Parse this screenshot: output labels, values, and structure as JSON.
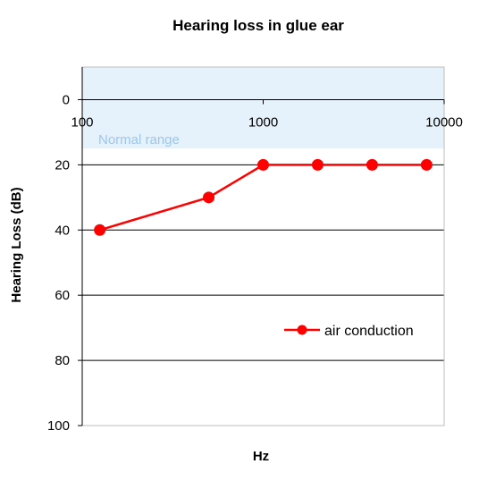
{
  "chart_data": {
    "type": "line",
    "title": "Hearing loss in glue ear",
    "xlabel": "Hz",
    "ylabel": "Hearing Loss (dB)",
    "x_scale": "log",
    "xlim": [
      100,
      10000
    ],
    "ylim": [
      -10,
      100
    ],
    "y_inverted": true,
    "x_ticks": [
      100,
      1000,
      10000
    ],
    "y_ticks": [
      0,
      20,
      40,
      60,
      80,
      100
    ],
    "grid": "horizontal",
    "normal_range": {
      "label": "Normal range",
      "y_from": -10,
      "y_to": 15,
      "color": "#e6f2fb"
    },
    "legend": "right",
    "series": [
      {
        "name": "air conduction",
        "color": "#ff0000",
        "marker": "circle",
        "x": [
          125,
          500,
          1000,
          2000,
          4000,
          8000
        ],
        "y": [
          40,
          30,
          20,
          20,
          20,
          20
        ]
      }
    ]
  }
}
